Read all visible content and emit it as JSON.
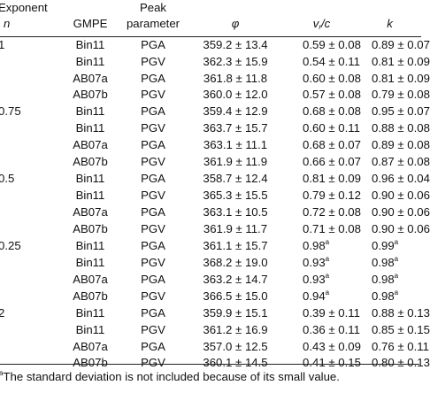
{
  "header": {
    "exponent_line1": "Exponent",
    "exponent_line2": "n",
    "gmpe": "GMPE",
    "peak_line1": "Peak",
    "peak_line2": "parameter",
    "phi": "φ",
    "vr_main": "v",
    "vr_sub": "r",
    "vr_tail": "/c",
    "k": "k"
  },
  "rows": [
    {
      "exponent": "1",
      "gmpe": "Bin11",
      "peak": "PGA",
      "phi": "359.2 ± 13.4",
      "vr": "0.59 ± 0.08",
      "vr_sup": "",
      "k": "0.89 ± 0.07",
      "k_sup": ""
    },
    {
      "exponent": "",
      "gmpe": "Bin11",
      "peak": "PGV",
      "phi": "362.3 ± 15.9",
      "vr": "0.54 ± 0.11",
      "vr_sup": "",
      "k": "0.81 ± 0.09",
      "k_sup": ""
    },
    {
      "exponent": "",
      "gmpe": "AB07a",
      "peak": "PGA",
      "phi": "361.8 ± 11.8",
      "vr": "0.60 ± 0.08",
      "vr_sup": "",
      "k": "0.81 ± 0.09",
      "k_sup": ""
    },
    {
      "exponent": "",
      "gmpe": "AB07b",
      "peak": "PGV",
      "phi": "360.0 ± 12.0",
      "vr": "0.57 ± 0.08",
      "vr_sup": "",
      "k": "0.79 ± 0.08",
      "k_sup": ""
    },
    {
      "exponent": "0.75",
      "gmpe": "Bin11",
      "peak": "PGA",
      "phi": "359.4 ± 12.9",
      "vr": "0.68 ± 0.08",
      "vr_sup": "",
      "k": "0.95 ± 0.07",
      "k_sup": ""
    },
    {
      "exponent": "",
      "gmpe": "Bin11",
      "peak": "PGV",
      "phi": "363.7 ± 15.7",
      "vr": "0.60 ± 0.11",
      "vr_sup": "",
      "k": "0.88 ± 0.08",
      "k_sup": ""
    },
    {
      "exponent": "",
      "gmpe": "AB07a",
      "peak": "PGA",
      "phi": "363.1 ± 11.1",
      "vr": "0.68 ± 0.07",
      "vr_sup": "",
      "k": "0.89 ± 0.08",
      "k_sup": ""
    },
    {
      "exponent": "",
      "gmpe": "AB07b",
      "peak": "PGV",
      "phi": "361.9 ± 11.9",
      "vr": "0.66 ± 0.07",
      "vr_sup": "",
      "k": "0.87 ± 0.08",
      "k_sup": ""
    },
    {
      "exponent": "0.5",
      "gmpe": "Bin11",
      "peak": "PGA",
      "phi": "358.7 ± 12.4",
      "vr": "0.81 ± 0.09",
      "vr_sup": "",
      "k": "0.96 ± 0.04",
      "k_sup": ""
    },
    {
      "exponent": "",
      "gmpe": "Bin11",
      "peak": "PGV",
      "phi": "365.3 ± 15.5",
      "vr": "0.79 ± 0.12",
      "vr_sup": "",
      "k": "0.90 ± 0.06",
      "k_sup": ""
    },
    {
      "exponent": "",
      "gmpe": "AB07a",
      "peak": "PGA",
      "phi": "363.1 ± 10.5",
      "vr": "0.72 ± 0.08",
      "vr_sup": "",
      "k": "0.90 ± 0.06",
      "k_sup": ""
    },
    {
      "exponent": "",
      "gmpe": "AB07b",
      "peak": "PGV",
      "phi": "361.9 ± 11.7",
      "vr": "0.71 ± 0.08",
      "vr_sup": "",
      "k": "0.90 ± 0.06",
      "k_sup": ""
    },
    {
      "exponent": "0.25",
      "gmpe": "Bin11",
      "peak": "PGA",
      "phi": "361.1 ± 15.7",
      "vr": "0.98",
      "vr_sup": "a",
      "k": "0.99",
      "k_sup": "a"
    },
    {
      "exponent": "",
      "gmpe": "Bin11",
      "peak": "PGV",
      "phi": "368.2 ± 19.0",
      "vr": "0.93",
      "vr_sup": "a",
      "k": "0.98",
      "k_sup": "a"
    },
    {
      "exponent": "",
      "gmpe": "AB07a",
      "peak": "PGA",
      "phi": "363.2 ± 14.7",
      "vr": "0.93",
      "vr_sup": "a",
      "k": "0.98",
      "k_sup": "a"
    },
    {
      "exponent": "",
      "gmpe": "AB07b",
      "peak": "PGV",
      "phi": "366.5 ± 15.0",
      "vr": "0.94",
      "vr_sup": "a",
      "k": "0.98",
      "k_sup": "a"
    },
    {
      "exponent": "2",
      "gmpe": "Bin11",
      "peak": "PGA",
      "phi": "359.9 ± 15.1",
      "vr": "0.39 ± 0.11",
      "vr_sup": "",
      "k": "0.88 ± 0.13",
      "k_sup": ""
    },
    {
      "exponent": "",
      "gmpe": "Bin11",
      "peak": "PGV",
      "phi": "361.2 ± 16.9",
      "vr": "0.36 ± 0.11",
      "vr_sup": "",
      "k": "0.85 ± 0.15",
      "k_sup": ""
    },
    {
      "exponent": "",
      "gmpe": "AB07a",
      "peak": "PGA",
      "phi": "357.0 ± 12.5",
      "vr": "0.43 ± 0.09",
      "vr_sup": "",
      "k": "0.76 ± 0.11",
      "k_sup": ""
    },
    {
      "exponent": "",
      "gmpe": "AB07b",
      "peak": "PGV",
      "phi": "360.1 ± 14.5",
      "vr": "0.41 ± 0.15",
      "vr_sup": "",
      "k": "0.80 ± 0.13",
      "k_sup": ""
    }
  ],
  "footnote": {
    "marker": "a",
    "text": "The standard deviation is not included because of its small value."
  }
}
